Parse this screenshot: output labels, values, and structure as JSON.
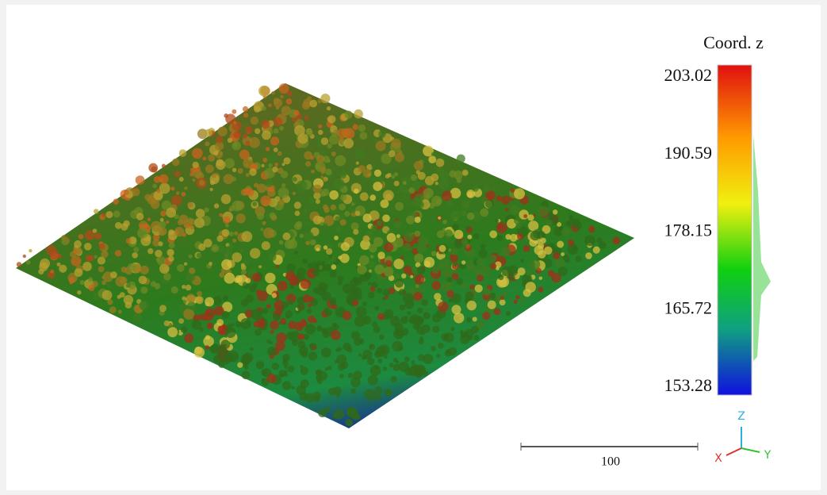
{
  "colorbar": {
    "title": "Coord. z",
    "ticks": [
      "203.02",
      "190.59",
      "178.15",
      "165.72",
      "153.28"
    ]
  },
  "scale_bar": {
    "label": "100"
  },
  "axes": {
    "x": "X",
    "y": "Y",
    "z": "Z"
  }
}
